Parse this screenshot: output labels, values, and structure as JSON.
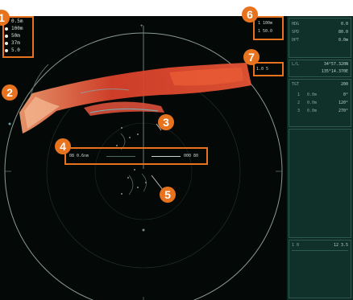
{
  "callouts": {
    "c1": "1",
    "c2": "2",
    "c3": "3",
    "c4": "4",
    "c5": "5",
    "c6": "6",
    "c7": "7"
  },
  "top_left_readouts": [
    {
      "label": "0.5m"
    },
    {
      "label": "100m"
    },
    {
      "label": "50m"
    },
    {
      "label": "37m"
    },
    {
      "label": "5.0"
    }
  ],
  "top_right_readouts": {
    "box6_line1": "1 100m",
    "box6_line2": "1 50.0",
    "box7_line": "1.0 5"
  },
  "range_bar": {
    "left": "08 0.6nm",
    "right": "000 80"
  },
  "right_panel": {
    "header": [
      {
        "label": "HDG",
        "value": "0.0"
      },
      {
        "label": "SPD",
        "value": "80.0"
      },
      {
        "label": "DPT",
        "value": "0.0m"
      }
    ],
    "position": {
      "title": "L/L",
      "lat": "34°57.320N",
      "lon": "135°14.370E"
    },
    "targets_title": "TGT",
    "targets_value": "200",
    "target_rows": [
      {
        "id": "1",
        "a": "0.0m",
        "b": "0°"
      },
      {
        "id": "2",
        "a": "0.0m",
        "b": "120°"
      },
      {
        "id": "3",
        "a": "0.0m",
        "b": "270°"
      }
    ],
    "bottom_row": {
      "left": "1 0",
      "right": "12 3.5"
    }
  },
  "colors": {
    "accent": "#e8731e",
    "echo_strong": "#e0452a",
    "echo_mid": "#f0a878",
    "echo_weak": "#5fb8c8",
    "panel_bg": "#0d2a24"
  }
}
